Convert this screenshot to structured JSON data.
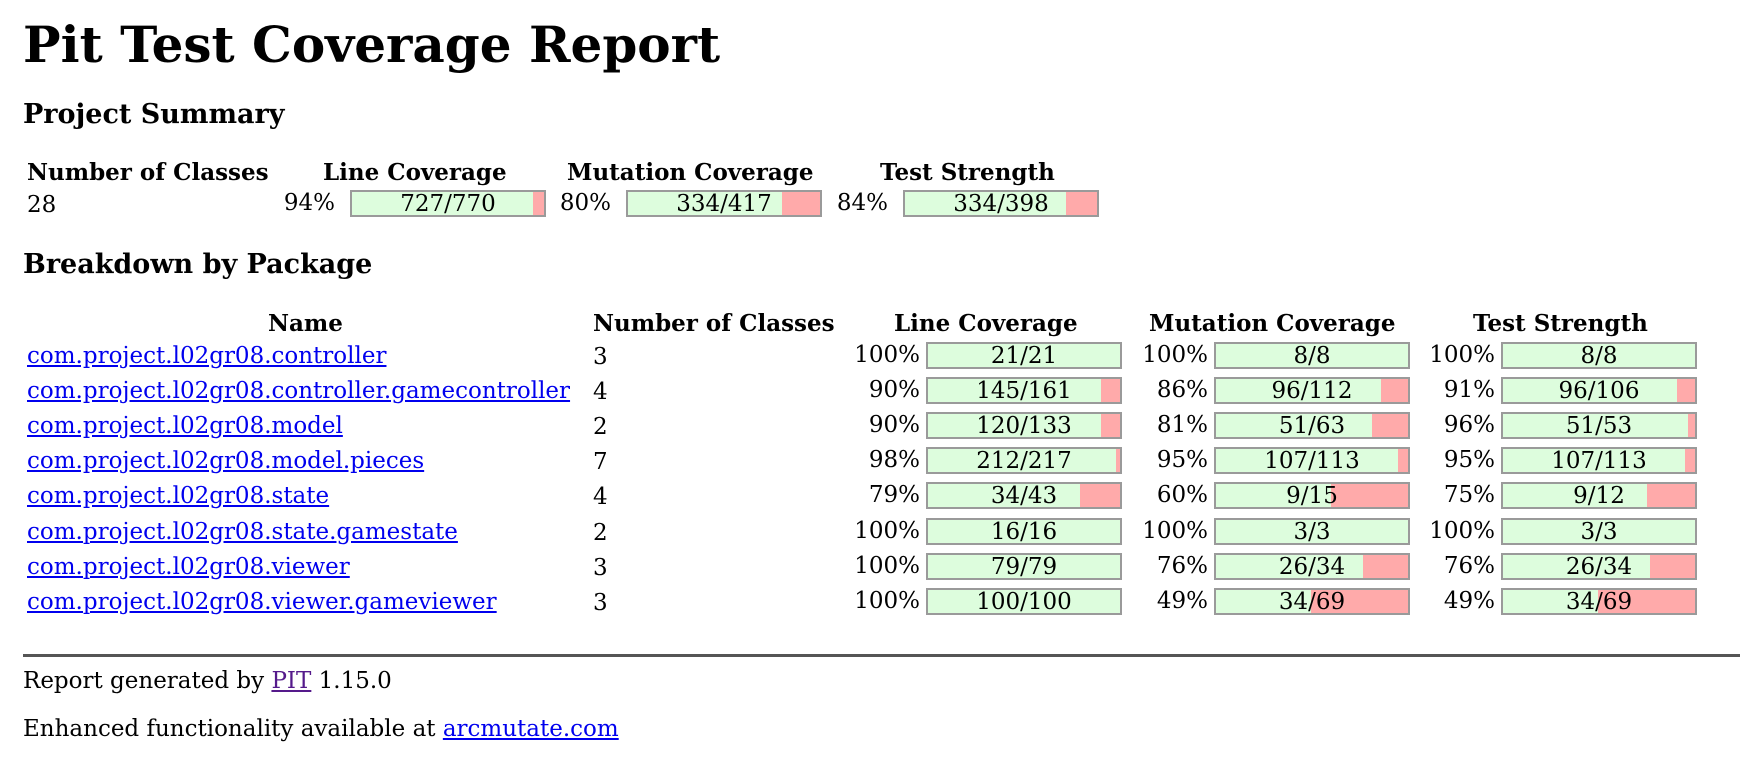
{
  "title": "Pit Test Coverage Report",
  "project_summary": {
    "heading": "Project Summary",
    "headers": {
      "classes": "Number of Classes",
      "line": "Line Coverage",
      "mutation": "Mutation Coverage",
      "strength": "Test Strength"
    },
    "classes": "28",
    "line": {
      "pct": "94%",
      "label": "727/770",
      "ratio": 0.944
    },
    "mutation": {
      "pct": "80%",
      "label": "334/417",
      "ratio": 0.801
    },
    "strength": {
      "pct": "84%",
      "label": "334/398",
      "ratio": 0.839
    }
  },
  "breakdown": {
    "heading": "Breakdown by Package",
    "headers": {
      "name": "Name",
      "classes": "Number of Classes",
      "line": "Line Coverage",
      "mutation": "Mutation Coverage",
      "strength": "Test Strength"
    },
    "rows": [
      {
        "name": "com.project.l02gr08.controller",
        "classes": "3",
        "line": {
          "pct": "100%",
          "label": "21/21",
          "ratio": 1.0
        },
        "mutation": {
          "pct": "100%",
          "label": "8/8",
          "ratio": 1.0
        },
        "strength": {
          "pct": "100%",
          "label": "8/8",
          "ratio": 1.0
        }
      },
      {
        "name": "com.project.l02gr08.controller.gamecontroller",
        "classes": "4",
        "line": {
          "pct": "90%",
          "label": "145/161",
          "ratio": 0.9
        },
        "mutation": {
          "pct": "86%",
          "label": "96/112",
          "ratio": 0.857
        },
        "strength": {
          "pct": "91%",
          "label": "96/106",
          "ratio": 0.906
        }
      },
      {
        "name": "com.project.l02gr08.model",
        "classes": "2",
        "line": {
          "pct": "90%",
          "label": "120/133",
          "ratio": 0.902
        },
        "mutation": {
          "pct": "81%",
          "label": "51/63",
          "ratio": 0.81
        },
        "strength": {
          "pct": "96%",
          "label": "51/53",
          "ratio": 0.962
        }
      },
      {
        "name": "com.project.l02gr08.model.pieces",
        "classes": "7",
        "line": {
          "pct": "98%",
          "label": "212/217",
          "ratio": 0.977
        },
        "mutation": {
          "pct": "95%",
          "label": "107/113",
          "ratio": 0.947
        },
        "strength": {
          "pct": "95%",
          "label": "107/113",
          "ratio": 0.947
        }
      },
      {
        "name": "com.project.l02gr08.state",
        "classes": "4",
        "line": {
          "pct": "79%",
          "label": "34/43",
          "ratio": 0.791
        },
        "mutation": {
          "pct": "60%",
          "label": "9/15",
          "ratio": 0.6
        },
        "strength": {
          "pct": "75%",
          "label": "9/12",
          "ratio": 0.75
        }
      },
      {
        "name": "com.project.l02gr08.state.gamestate",
        "classes": "2",
        "line": {
          "pct": "100%",
          "label": "16/16",
          "ratio": 1.0
        },
        "mutation": {
          "pct": "100%",
          "label": "3/3",
          "ratio": 1.0
        },
        "strength": {
          "pct": "100%",
          "label": "3/3",
          "ratio": 1.0
        }
      },
      {
        "name": "com.project.l02gr08.viewer",
        "classes": "3",
        "line": {
          "pct": "100%",
          "label": "79/79",
          "ratio": 1.0
        },
        "mutation": {
          "pct": "76%",
          "label": "26/34",
          "ratio": 0.765
        },
        "strength": {
          "pct": "76%",
          "label": "26/34",
          "ratio": 0.765
        }
      },
      {
        "name": "com.project.l02gr08.viewer.gameviewer",
        "classes": "3",
        "line": {
          "pct": "100%",
          "label": "100/100",
          "ratio": 1.0
        },
        "mutation": {
          "pct": "49%",
          "label": "34/69",
          "ratio": 0.493
        },
        "strength": {
          "pct": "49%",
          "label": "34/69",
          "ratio": 0.493
        }
      }
    ]
  },
  "footer": {
    "generated_prefix": "Report generated by ",
    "pit_link": "PIT",
    "version": " 1.15.0",
    "enhanced_prefix": "Enhanced functionality available at ",
    "arcmutate_link": "arcmutate.com"
  },
  "colors": {
    "covered": "#ddfddd",
    "uncovered": "#ffaaaa",
    "link": "#0000ee",
    "visited_link": "#551a8b"
  }
}
